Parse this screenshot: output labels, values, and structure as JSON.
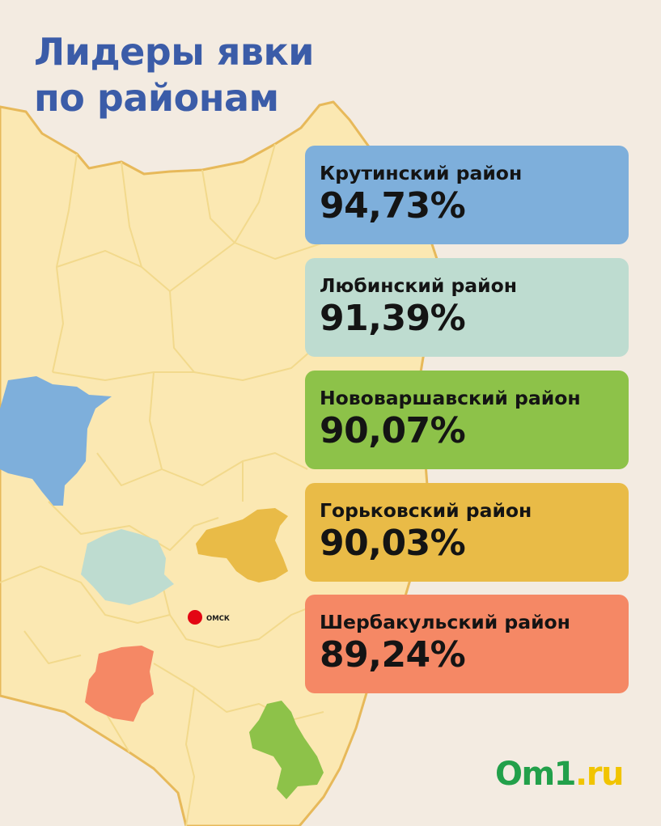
{
  "title": {
    "line1": "Лидеры явки",
    "line2": "по районам"
  },
  "colors": {
    "background": "#f3ebe1",
    "map_fill": "#fbe8b2",
    "map_border": "#e7b95a",
    "title": "#3b5ca8",
    "city": "#e30613"
  },
  "districts": [
    {
      "name": "Крутинский район",
      "turnout": "94,73%",
      "color": "#7eafdb"
    },
    {
      "name": "Любинский район",
      "turnout": "91,39%",
      "color": "#bedcd0"
    },
    {
      "name": "Нововаршавский район",
      "turnout": "90,07%",
      "color": "#8dc249"
    },
    {
      "name": "Горьковский район",
      "turnout": "90,03%",
      "color": "#e9bb47"
    },
    {
      "name": "Шербакульский район",
      "turnout": "89,24%",
      "color": "#f58865"
    }
  ],
  "map": {
    "city_label": "ОМСК"
  },
  "logo": {
    "part1": "Om1",
    "part2": ".ru"
  }
}
